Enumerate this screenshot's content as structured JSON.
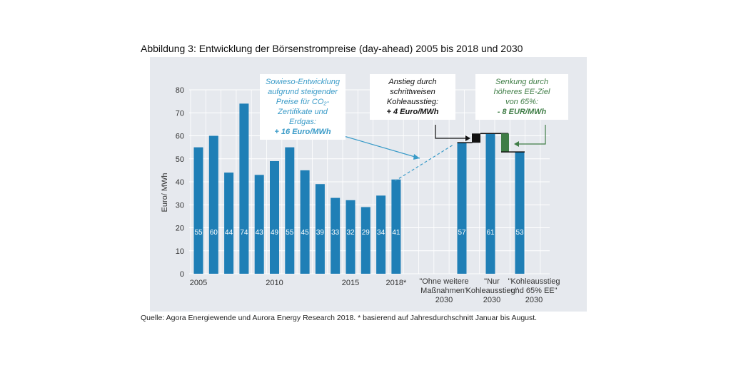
{
  "title": "Abbildung 3: Entwicklung der Börsenstrompreise (day-ahead) 2005 bis 2018 und 2030",
  "source": "Quelle: Agora Energiewende und Aurora Energy Research 2018. * basierend auf Jahresdurchschnitt Januar bis August.",
  "annotations": {
    "sowieso": {
      "lines": [
        "Sowieso-Entwicklung",
        "aufgrund steigender",
        "Preise für CO₂-",
        "Zertifikate und Erdgas:"
      ],
      "value": "+ 16 Euro/MWh",
      "color": "#3a9bc8"
    },
    "anstieg": {
      "lines": [
        "Anstieg durch",
        "schrittweisen",
        "Kohleausstieg:"
      ],
      "value": "+ 4 Euro/MWh",
      "color": "#111111"
    },
    "senkung": {
      "lines": [
        "Senkung durch",
        "höheres EE-Ziel",
        "von 65%:"
      ],
      "value": "- 8 EUR/MWh",
      "color": "#3f7d46"
    }
  },
  "chart_data": {
    "type": "bar",
    "ylabel": "Euro/ MWh",
    "ylim": [
      0,
      80
    ],
    "yticks": [
      0,
      10,
      20,
      30,
      40,
      50,
      60,
      70,
      80
    ],
    "grid": true,
    "bar_color": "#1f7fb6",
    "historical": {
      "years": [
        2005,
        2006,
        2007,
        2008,
        2009,
        2010,
        2011,
        2012,
        2013,
        2014,
        2015,
        2016,
        2017,
        2018
      ],
      "values": [
        55,
        60,
        44,
        74,
        43,
        49,
        55,
        45,
        39,
        33,
        32,
        29,
        34,
        41
      ],
      "tick_labels": [
        {
          "year": 2005,
          "label": "2005"
        },
        {
          "year": 2010,
          "label": "2010"
        },
        {
          "year": 2015,
          "label": "2015"
        },
        {
          "year": 2018,
          "label": "2018*"
        }
      ]
    },
    "scenarios": [
      {
        "label": [
          "\"Ohne weitere",
          "Maßnahmen\"",
          "2030"
        ],
        "value": 57
      },
      {
        "label": [
          "\"Nur",
          "Kohleausstieg\"",
          "2030"
        ],
        "value": 61
      },
      {
        "label": [
          "\"Kohleausstieg",
          "und 65% EE\"",
          "2030"
        ],
        "value": 53
      }
    ]
  }
}
